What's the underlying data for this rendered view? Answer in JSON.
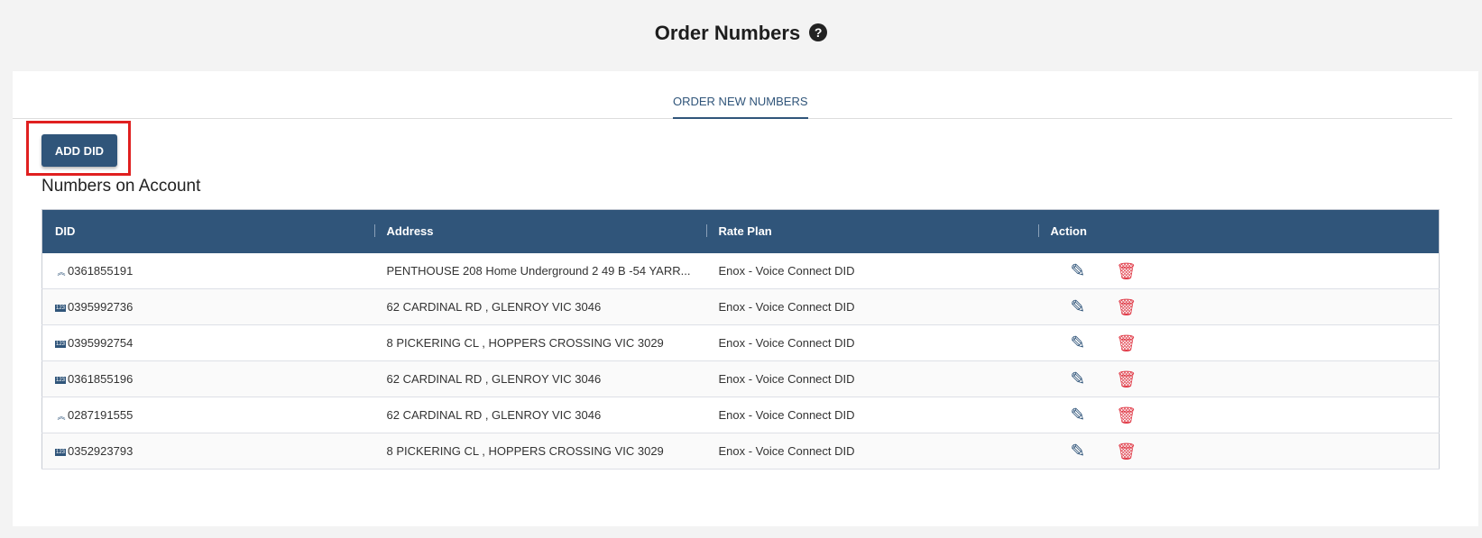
{
  "page": {
    "title": "Order Numbers",
    "help_icon": "question-circle-icon"
  },
  "tabs": [
    {
      "label": "ORDER NEW NUMBERS",
      "active": true
    }
  ],
  "add_button": "ADD DID",
  "section_title": "Numbers on Account",
  "table": {
    "headers": [
      "DID",
      "Address",
      "Rate Plan",
      "Action"
    ],
    "rows": [
      {
        "icon": "ported-icon",
        "did": "0361855191",
        "address": "PENTHOUSE 208 Home Underground 2 49 B -54 YARR...",
        "plan": "Enox - Voice Connect DID"
      },
      {
        "icon": "number-icon",
        "did": "0395992736",
        "address": "62 CARDINAL RD , GLENROY VIC 3046",
        "plan": "Enox - Voice Connect DID"
      },
      {
        "icon": "number-icon",
        "did": "0395992754",
        "address": "8 PICKERING CL , HOPPERS CROSSING VIC 3029",
        "plan": "Enox - Voice Connect DID"
      },
      {
        "icon": "number-icon",
        "did": "0361855196",
        "address": "62 CARDINAL RD , GLENROY VIC 3046",
        "plan": "Enox - Voice Connect DID"
      },
      {
        "icon": "ported-icon",
        "did": "0287191555",
        "address": "62 CARDINAL RD , GLENROY VIC 3046",
        "plan": "Enox - Voice Connect DID"
      },
      {
        "icon": "number-icon",
        "did": "0352923793",
        "address": "8 PICKERING CL , HOPPERS CROSSING VIC 3029",
        "plan": "Enox - Voice Connect DID"
      }
    ]
  },
  "colors": {
    "primary": "#30557a",
    "delete": "#e03845",
    "highlight": "#e02020"
  }
}
